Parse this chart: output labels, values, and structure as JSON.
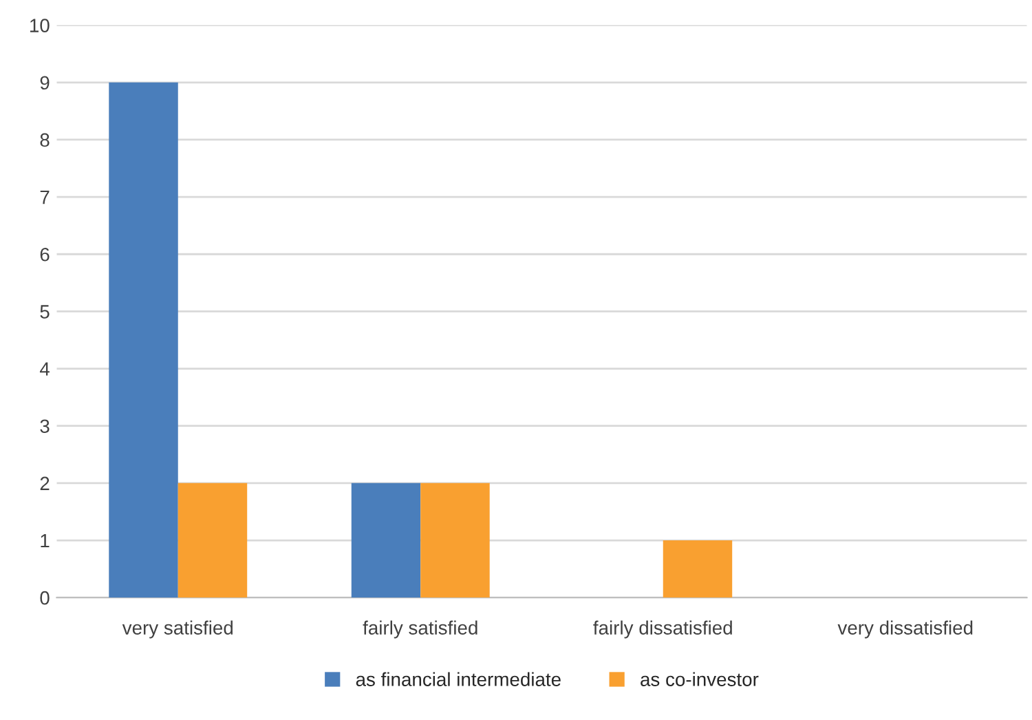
{
  "chart_data": {
    "type": "bar",
    "categories": [
      "very satisfied",
      "fairly satisfied",
      "fairly dissatisfied",
      "very dissatisfied"
    ],
    "series": [
      {
        "name": "as financial intermediate",
        "color": "#4a7ebb",
        "values": [
          9,
          2,
          0,
          0
        ]
      },
      {
        "name": "as co-investor",
        "color": "#f9a030",
        "values": [
          2,
          2,
          1,
          0
        ]
      }
    ],
    "ylim": [
      0,
      10
    ],
    "yticks": [
      0,
      1,
      2,
      3,
      4,
      5,
      6,
      7,
      8,
      9,
      10
    ],
    "grid": "y",
    "legend": "bottom"
  }
}
